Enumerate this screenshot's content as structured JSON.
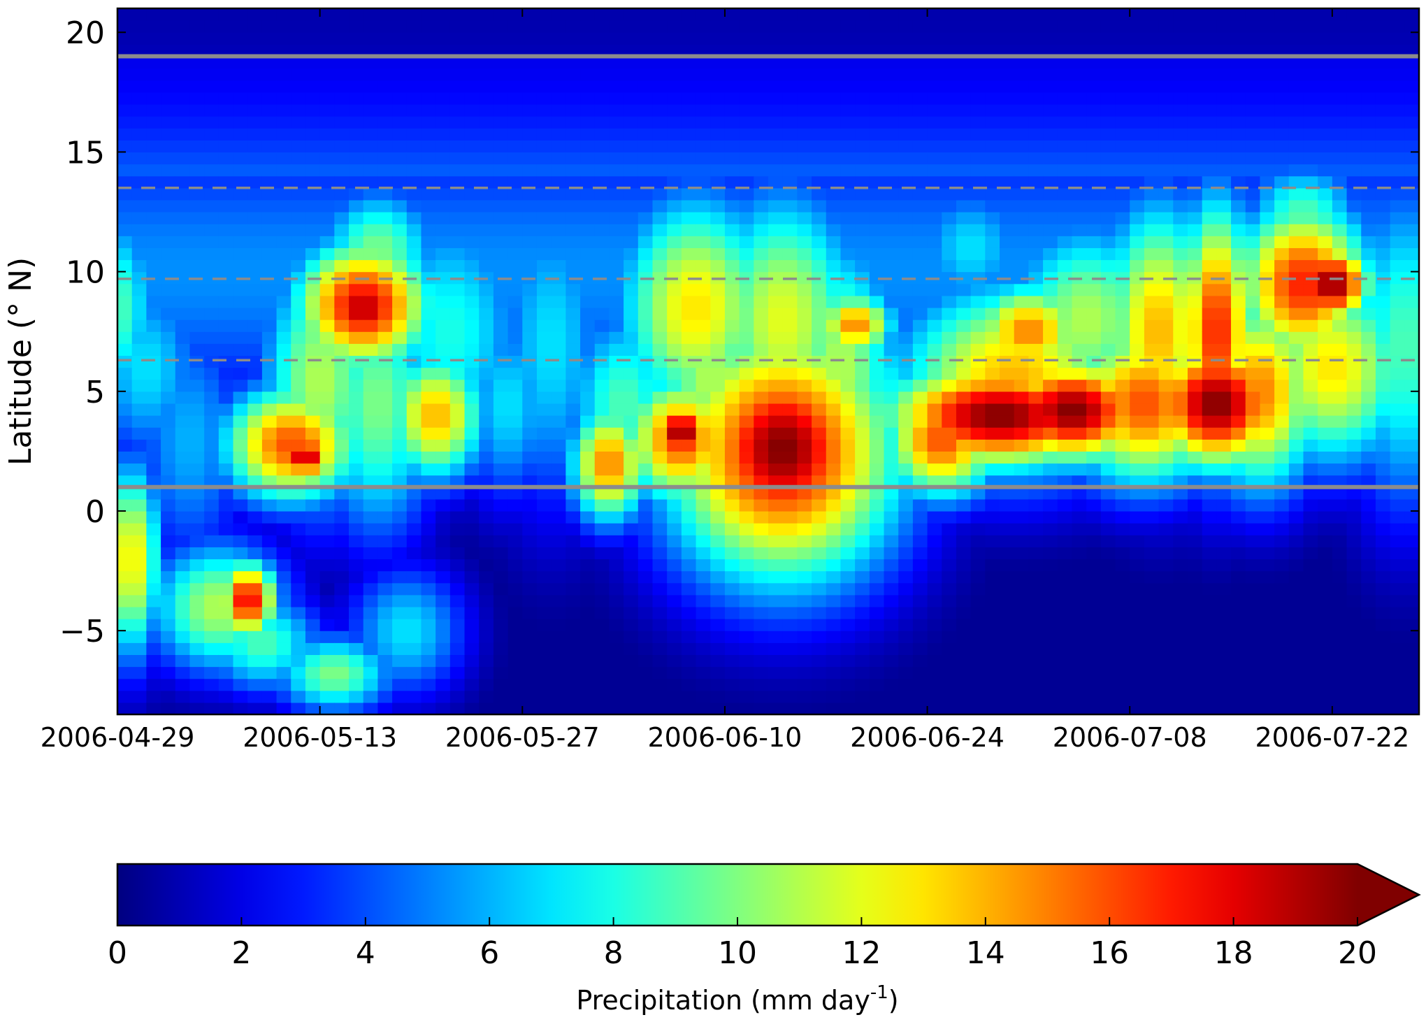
{
  "chart_data": {
    "type": "heatmap",
    "x_axis": {
      "start": "2006-04-29",
      "end": "2006-07-28",
      "tick_labels": [
        "2006-04-29",
        "2006-05-13",
        "2006-05-27",
        "2006-06-10",
        "2006-06-24",
        "2006-07-08",
        "2006-07-22"
      ]
    },
    "y_axis": {
      "label": "Latitude (° N)",
      "range": [
        -8.5,
        21
      ],
      "ticks": [
        20,
        15,
        10,
        5,
        0,
        -5
      ],
      "tick_labels": [
        "20",
        "15",
        "10",
        "5",
        "0",
        "−5"
      ]
    },
    "reference_lines": {
      "solid": [
        19.0,
        1.0
      ],
      "dashed": [
        13.5,
        9.7,
        6.3
      ]
    },
    "colorbar": {
      "label": "Precipitation (mm day",
      "label_superscript": "-1",
      "label_close": ")",
      "range": [
        0,
        20
      ],
      "extend": "max",
      "ticks": [
        "0",
        "2",
        "4",
        "6",
        "8",
        "10",
        "12",
        "14",
        "16",
        "18",
        "20"
      ],
      "colormap": "jet"
    },
    "grid": false,
    "precip_features": [
      {
        "date": "2006-04-29",
        "lat": 8.5,
        "mm_day": 9,
        "days": 2,
        "deg": 3
      },
      {
        "date": "2006-04-30",
        "lat": -2,
        "mm_day": 13,
        "days": 1.5,
        "deg": 3
      },
      {
        "date": "2006-05-01",
        "lat": 6,
        "mm_day": 7,
        "days": 3,
        "deg": 3
      },
      {
        "date": "2006-05-04",
        "lat": 3,
        "mm_day": 6,
        "days": 3,
        "deg": 4
      },
      {
        "date": "2006-05-06",
        "lat": -4,
        "mm_day": 11,
        "days": 3.5,
        "deg": 2
      },
      {
        "date": "2006-05-08",
        "lat": -3.7,
        "mm_day": 18,
        "days": 1.5,
        "deg": 1.2
      },
      {
        "date": "2006-05-09",
        "lat": -5.5,
        "mm_day": 9,
        "days": 3,
        "deg": 1.5
      },
      {
        "date": "2006-05-11",
        "lat": 2.8,
        "mm_day": 16,
        "days": 3.5,
        "deg": 1.8
      },
      {
        "date": "2006-05-12",
        "lat": 2.3,
        "mm_day": 19,
        "days": 1.5,
        "deg": 0.8
      },
      {
        "date": "2006-05-13",
        "lat": 5.5,
        "mm_day": 11,
        "days": 3,
        "deg": 4
      },
      {
        "date": "2006-05-14",
        "lat": -6.8,
        "mm_day": 10,
        "days": 3,
        "deg": 1.2
      },
      {
        "date": "2006-05-16",
        "lat": 8.6,
        "mm_day": 18,
        "days": 3.5,
        "deg": 2
      },
      {
        "date": "2006-05-16",
        "lat": 8.5,
        "mm_day": 20,
        "days": 1.5,
        "deg": 1.0
      },
      {
        "date": "2006-05-17",
        "lat": 4.5,
        "mm_day": 10,
        "days": 3,
        "deg": 4
      },
      {
        "date": "2006-05-17",
        "lat": 10.8,
        "mm_day": 10,
        "days": 3,
        "deg": 2
      },
      {
        "date": "2006-05-19",
        "lat": -5,
        "mm_day": 7,
        "days": 3,
        "deg": 2
      },
      {
        "date": "2006-05-21",
        "lat": 4,
        "mm_day": 14,
        "days": 2.5,
        "deg": 2
      },
      {
        "date": "2006-05-22",
        "lat": 7.5,
        "mm_day": 8,
        "days": 4,
        "deg": 4
      },
      {
        "date": "2006-05-26",
        "lat": 4.5,
        "mm_day": 7,
        "days": 2.5,
        "deg": 3
      },
      {
        "date": "2006-05-29",
        "lat": 7,
        "mm_day": 7,
        "days": 3,
        "deg": 5
      },
      {
        "date": "2006-06-02",
        "lat": 2,
        "mm_day": 15,
        "days": 2,
        "deg": 1.8
      },
      {
        "date": "2006-06-03",
        "lat": 4.5,
        "mm_day": 9,
        "days": 3,
        "deg": 3
      },
      {
        "date": "2006-06-07",
        "lat": 3,
        "mm_day": 16,
        "days": 3,
        "deg": 2
      },
      {
        "date": "2006-06-07",
        "lat": 3.3,
        "mm_day": 20,
        "days": 1.5,
        "deg": 1
      },
      {
        "date": "2006-06-08",
        "lat": 8.5,
        "mm_day": 13,
        "days": 4,
        "deg": 3.5
      },
      {
        "date": "2006-06-09",
        "lat": 5.5,
        "mm_day": 11,
        "days": 3,
        "deg": 3
      },
      {
        "date": "2006-06-14",
        "lat": 2.5,
        "mm_day": 18,
        "days": 6,
        "deg": 4
      },
      {
        "date": "2006-06-14",
        "lat": 2.6,
        "mm_day": 20,
        "days": 4.5,
        "deg": 3
      },
      {
        "date": "2006-06-14",
        "lat": 8,
        "mm_day": 12,
        "days": 4,
        "deg": 4
      },
      {
        "date": "2006-06-18",
        "lat": 6,
        "mm_day": 11,
        "days": 3,
        "deg": 4
      },
      {
        "date": "2006-06-19",
        "lat": 7.8,
        "mm_day": 15,
        "days": 2,
        "deg": 1
      },
      {
        "date": "2006-06-21",
        "lat": 4.5,
        "mm_day": 8,
        "days": 3,
        "deg": 3
      },
      {
        "date": "2006-06-25",
        "lat": 3,
        "mm_day": 16,
        "days": 3,
        "deg": 1.8
      },
      {
        "date": "2006-06-27",
        "lat": 11,
        "mm_day": 7,
        "days": 3,
        "deg": 2
      },
      {
        "date": "2006-06-29",
        "lat": 4,
        "mm_day": 20,
        "days": 6,
        "deg": 1.6
      },
      {
        "date": "2006-06-30",
        "lat": 5.5,
        "mm_day": 14,
        "days": 6,
        "deg": 3
      },
      {
        "date": "2006-07-01",
        "lat": 7.5,
        "mm_day": 15,
        "days": 3,
        "deg": 1.5
      },
      {
        "date": "2006-07-04",
        "lat": 4.2,
        "mm_day": 20,
        "days": 4,
        "deg": 1.6
      },
      {
        "date": "2006-07-05",
        "lat": 8,
        "mm_day": 11,
        "days": 4,
        "deg": 3
      },
      {
        "date": "2006-07-09",
        "lat": 4.5,
        "mm_day": 16,
        "days": 4,
        "deg": 2.5
      },
      {
        "date": "2006-07-10",
        "lat": 7.5,
        "mm_day": 14,
        "days": 3,
        "deg": 4
      },
      {
        "date": "2006-07-14",
        "lat": 4.5,
        "mm_day": 20,
        "days": 3.5,
        "deg": 2
      },
      {
        "date": "2006-07-14",
        "lat": 7.5,
        "mm_day": 17,
        "days": 2,
        "deg": 4
      },
      {
        "date": "2006-07-17",
        "lat": 5,
        "mm_day": 15,
        "days": 3,
        "deg": 3
      },
      {
        "date": "2006-07-20",
        "lat": 9.5,
        "mm_day": 17,
        "days": 3.5,
        "deg": 2.5
      },
      {
        "date": "2006-07-22",
        "lat": 9.5,
        "mm_day": 20,
        "days": 2,
        "deg": 1.2
      },
      {
        "date": "2006-07-22",
        "lat": 6,
        "mm_day": 13,
        "days": 4,
        "deg": 3
      },
      {
        "date": "2006-07-20",
        "lat": 12.5,
        "mm_day": 9,
        "days": 3,
        "deg": 1.5
      },
      {
        "date": "2006-07-27",
        "lat": 7,
        "mm_day": 9,
        "days": 3,
        "deg": 5
      }
    ]
  }
}
